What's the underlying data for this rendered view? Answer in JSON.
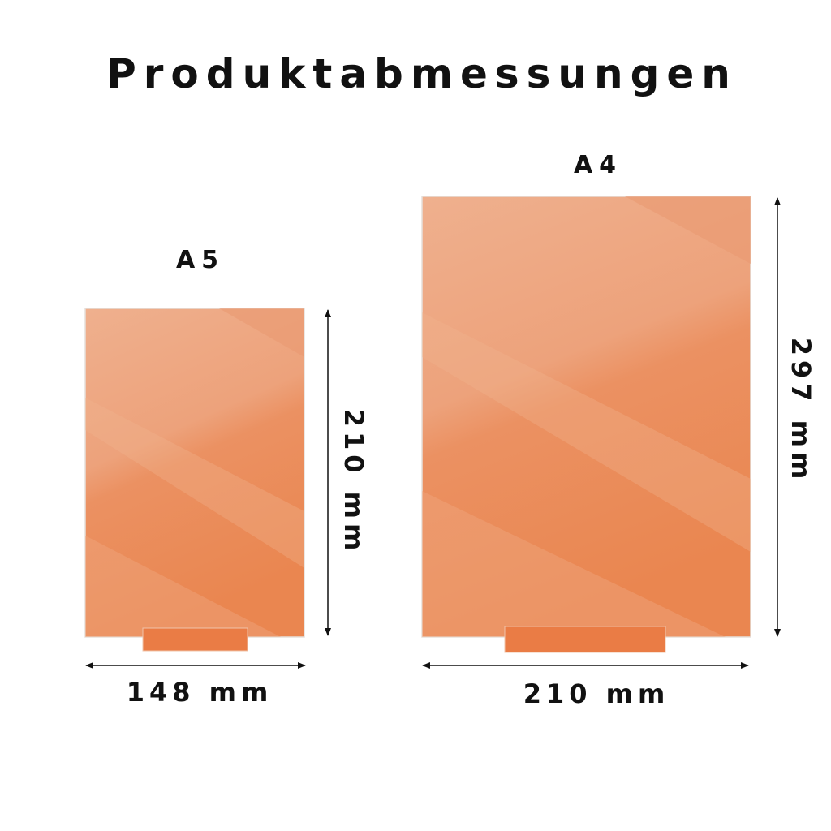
{
  "title": "Produktabmessungen",
  "colors": {
    "panel_light": "#efae8a",
    "panel_dark": "#ea8552",
    "stand": "#e9773e",
    "arrow": "#111111"
  },
  "panels": [
    {
      "label": "A5",
      "width_label": "148 mm",
      "height_label": "210 mm"
    },
    {
      "label": "A4",
      "width_label": "210 mm",
      "height_label": "297 mm"
    }
  ]
}
